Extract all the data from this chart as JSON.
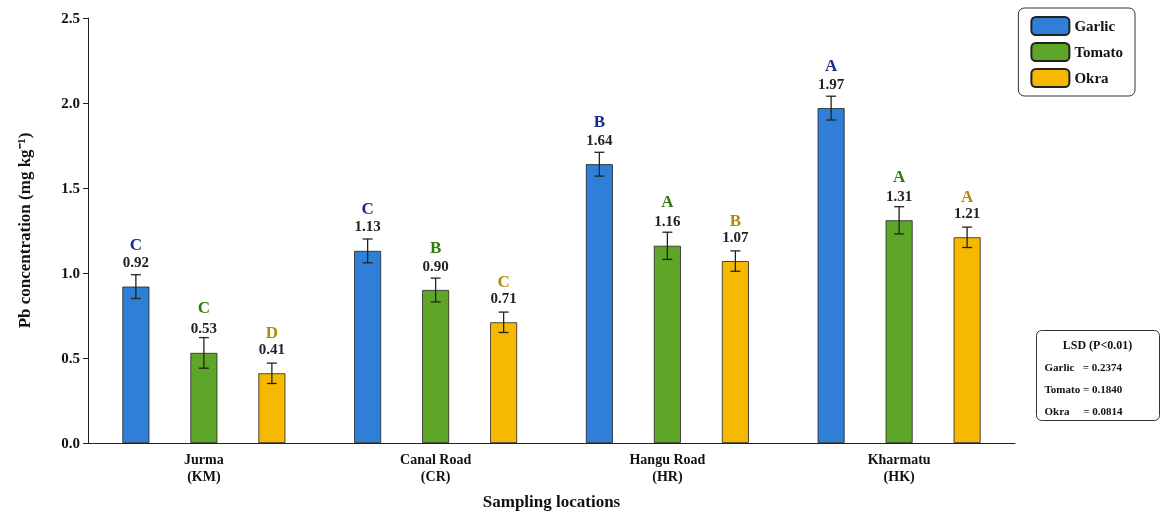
{
  "chart_data": {
    "type": "bar",
    "xlabel": "Sampling locations",
    "ylabel": "Pb concentration (mg kg⁻¹)",
    "categories": [
      "Jurma\n(KM)",
      "Canal Road\n(CR)",
      "Hangu Road\n(HR)",
      "Kharmatu\n(HK)"
    ],
    "series": [
      {
        "name": "Garlic",
        "color": "#2f7fd8",
        "values": [
          0.92,
          1.13,
          1.64,
          1.97
        ],
        "errors": [
          0.07,
          0.07,
          0.07,
          0.07
        ]
      },
      {
        "name": "Tomato",
        "color": "#5ea628",
        "values": [
          0.53,
          0.9,
          1.16,
          1.31
        ],
        "value_labels": [
          "0.53",
          "0.90",
          "1.16",
          "1.31"
        ],
        "errors": [
          0.09,
          0.07,
          0.08,
          0.08
        ]
      },
      {
        "name": "Okra",
        "color": "#f6b800",
        "values": [
          0.41,
          0.71,
          1.07,
          1.21
        ],
        "errors": [
          0.06,
          0.06,
          0.06,
          0.06
        ]
      }
    ],
    "ylim": [
      0,
      2.5
    ],
    "yticks": [
      {
        "value": 0,
        "label": "0.0"
      },
      {
        "value": 0.5,
        "label": "0.5"
      },
      {
        "value": 1,
        "label": "1.0"
      },
      {
        "value": 1.5,
        "label": "1.5"
      },
      {
        "value": 2,
        "label": "2.0"
      },
      {
        "value": 2.5,
        "label": "2.5"
      }
    ],
    "grid": false,
    "legend": "top right",
    "data_labels": true,
    "annotations": [
      "C",
      "C",
      "D",
      "C",
      "B",
      "C",
      "B",
      "A",
      "B",
      "A",
      "A",
      "A",
      "LSD (P<0.01)",
      "Garlic   = 0.2374",
      "Tomato = 0.1840",
      "Okra     = 0.0814"
    ]
  }
}
